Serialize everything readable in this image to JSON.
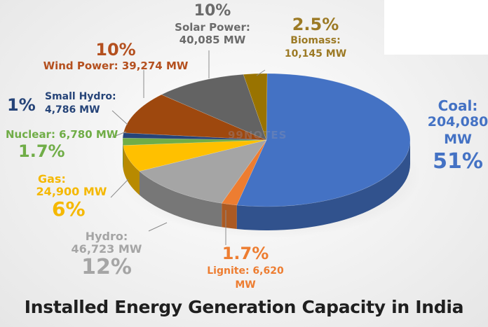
{
  "chart_data": {
    "type": "pie",
    "title": "Installed Energy Generation Capacity in India",
    "watermark": "99NOTES",
    "slices": [
      {
        "key": "coal",
        "name": "Coal:",
        "value_label": "204,080 MW",
        "pct_label": "51%",
        "value": 204080,
        "pct": 51,
        "color": "#4472c4"
      },
      {
        "key": "lignite",
        "name": "Lignite: 6,620",
        "value_label": "MW",
        "pct_label": "1.7%",
        "value": 6620,
        "pct": 1.7,
        "color": "#ed7d31"
      },
      {
        "key": "hydro",
        "name": "Hydro:",
        "value_label": "46,723 MW",
        "pct_label": "12%",
        "value": 46723,
        "pct": 12,
        "color": "#a5a5a5"
      },
      {
        "key": "gas",
        "name": "Gas:",
        "value_label": "24,900 MW",
        "pct_label": "6%",
        "value": 24900,
        "pct": 6,
        "color": "#ffc000"
      },
      {
        "key": "nuclear",
        "name": "Nuclear: 6,780 MW",
        "value_label": "",
        "pct_label": "1.7%",
        "value": 6780,
        "pct": 1.7,
        "color": "#70ad47"
      },
      {
        "key": "small_hydro",
        "name": "Small Hydro:",
        "value_label": "4,786 MW",
        "pct_label": "1%",
        "value": 4786,
        "pct": 1,
        "color": "#264478"
      },
      {
        "key": "wind",
        "name": "Wind Power: 39,274 MW",
        "value_label": "",
        "pct_label": "10%",
        "value": 39274,
        "pct": 10,
        "color": "#9e480e"
      },
      {
        "key": "solar",
        "name": "Solar Power:",
        "value_label": "40,085 MW",
        "pct_label": "10%",
        "value": 40085,
        "pct": 10,
        "color": "#636363"
      },
      {
        "key": "biomass",
        "name": "Biomass:",
        "value_label": "10,145 MW",
        "pct_label": "2.5%",
        "value": 10145,
        "pct": 2.5,
        "color": "#997300"
      }
    ],
    "label_colors": {
      "coal": "#4472c4",
      "lignite": "#ed7d31",
      "hydro": "#a5a5a5",
      "gas": "#f5b800",
      "nuclear": "#70ad47",
      "small_hydro": "#264478",
      "wind": "#b4501f",
      "solar": "#6b6b6b",
      "biomass": "#9c7a25"
    }
  }
}
